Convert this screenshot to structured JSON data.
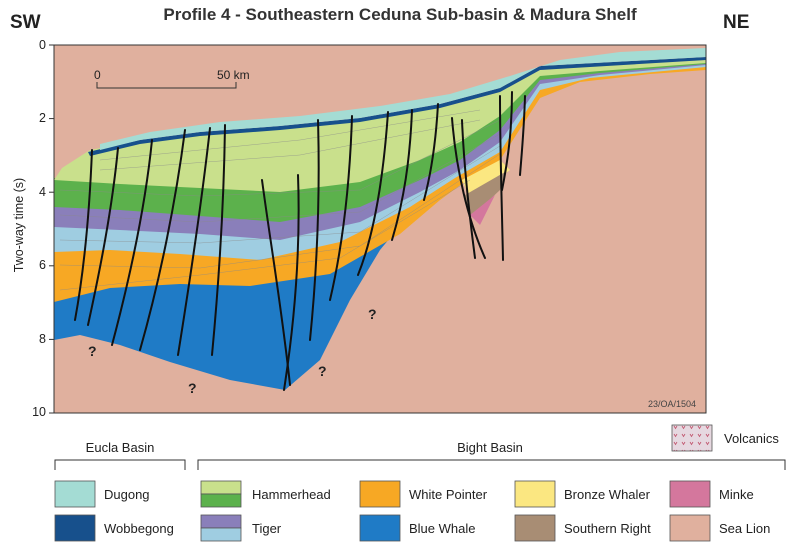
{
  "title": "Profile 4 - Southeastern Ceduna Sub-basin & Madura Shelf",
  "left_direction": "SW",
  "right_direction": "NE",
  "y_axis": {
    "label": "Two-way time (s)",
    "ticks": [
      "0",
      "2",
      "4",
      "6",
      "8",
      "10"
    ]
  },
  "scale_bar": {
    "start_label": "0",
    "end_label": "50 km"
  },
  "unknown_marker": "?",
  "figure_id": "23/OA/1504",
  "basins": {
    "eucla": "Eucla Basin",
    "bight": "Bight Basin"
  },
  "legend": {
    "volcanics": "Volcanics",
    "dugong": "Dugong",
    "wobbegong": "Wobbegong",
    "hammerhead": "Hammerhead",
    "tiger": "Tiger",
    "white_pointer": "White Pointer",
    "blue_whale": "Blue Whale",
    "bronze_whaler": "Bronze Whaler",
    "southern_right": "Southern Right",
    "minke": "Minke",
    "sea_lion": "Sea Lion"
  },
  "colors": {
    "dugong": "#a4dcd4",
    "wobbegong": "#17508c",
    "hammerhead_light": "#c9e08c",
    "hammerhead_dark": "#5cb14c",
    "tiger_dark": "#8a7fba",
    "tiger_light": "#9fcde1",
    "white_pointer": "#f7a824",
    "blue_whale": "#1f7bc6",
    "bronze_whaler": "#fbe781",
    "southern_right": "#a88d74",
    "minke": "#d4779d",
    "sea_lion": "#e0b09e",
    "volcanics": "#e6d8e0"
  }
}
